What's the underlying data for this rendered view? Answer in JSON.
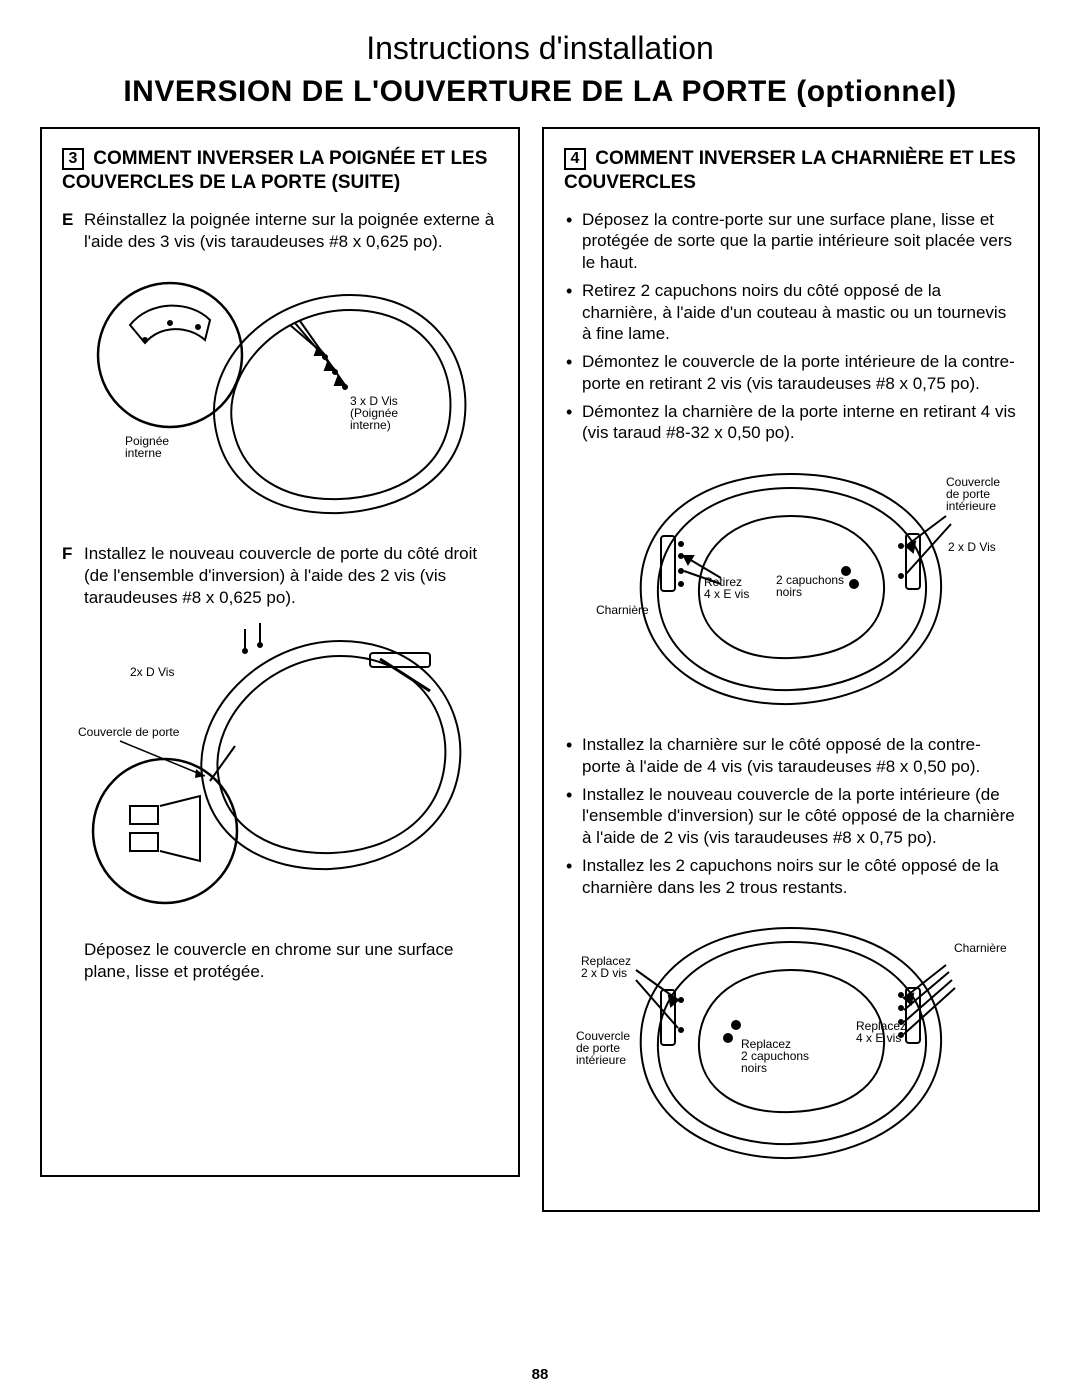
{
  "page": {
    "title": "Instructions d'installation",
    "subtitle": "INVERSION DE L'OUVERTURE DE LA PORTE (optionnel)",
    "number": "88"
  },
  "left": {
    "step_num": "3",
    "heading": "COMMENT INVERSER LA POIGNÉE ET LES COUVERCLES DE LA PORTE (SUITE)",
    "E_letter": "E",
    "E_text": "Réinstallez la poignée interne sur la poignée externe à l'aide des 3 vis (vis taraudeuses #8 x 0,625 po).",
    "F_letter": "F",
    "F_text": "Installez le nouveau couvercle de porte du côté droit (de l'ensemble d'inversion) à l'aide des 2 vis (vis taraudeuses #8 x 0,625 po).",
    "caption": "Déposez le couvercle en chrome sur une surface plane, lisse et protégée.",
    "diagE": {
      "lbl_handle": "Poignée\ninterne",
      "lbl_screws": "3 x D Vis\n(Poignée\ninterne)"
    },
    "diagF": {
      "lbl_screws": "2x D Vis",
      "lbl_cover": "Couvercle de porte"
    }
  },
  "right": {
    "step_num": "4",
    "heading": "COMMENT INVERSER LA CHARNIÈRE ET LES COUVERCLES",
    "bullets1": [
      "Déposez la contre-porte sur une surface plane, lisse et protégée de sorte que la partie intérieure soit placée vers le haut.",
      "Retirez 2 capuchons noirs du côté opposé de la charnière, à l'aide d'un couteau à mastic ou un tournevis à fine lame.",
      "Démontez le couvercle de la porte intérieure de la contre-porte en retirant 2 vis (vis taraudeuses #8 x 0,75 po).",
      "Démontez la charnière de la porte interne en retirant 4 vis (vis taraud #8-32 x 0,50 po)."
    ],
    "bullets2": [
      "Installez la charnière sur le côté opposé de la contre-porte à l'aide de 4 vis (vis taraudeuses #8 x 0,50 po).",
      "Installez le nouveau couvercle de la porte intérieure (de l'ensemble d'inversion) sur le côté opposé de la charnière à l'aide de 2 vis (vis taraudeuses #8 x 0,75 po).",
      "Installez les 2 capuchons noirs sur le côté opposé de la charnière dans les 2 trous restants."
    ],
    "diag1": {
      "lbl_hinge": "Charnière",
      "lbl_remove4": "Retirez\n4 x E vis",
      "lbl_caps": "2 capuchons\nnoirs",
      "lbl_cover": "Couvercle\nde porte\nintérieure",
      "lbl_2d": "2 x D Vis"
    },
    "diag2": {
      "lbl_replace2d": "Replacez\n2 x D vis",
      "lbl_cover": "Couvercle\nde porte\nintérieure",
      "lbl_replace_caps": "Replacez\n2 capuchons\nnoirs",
      "lbl_replace4e": "Replacez\n4 x E vis",
      "lbl_hinge": "Charnière"
    }
  },
  "colors": {
    "text": "#000000",
    "bg": "#ffffff",
    "stroke": "#000000"
  }
}
